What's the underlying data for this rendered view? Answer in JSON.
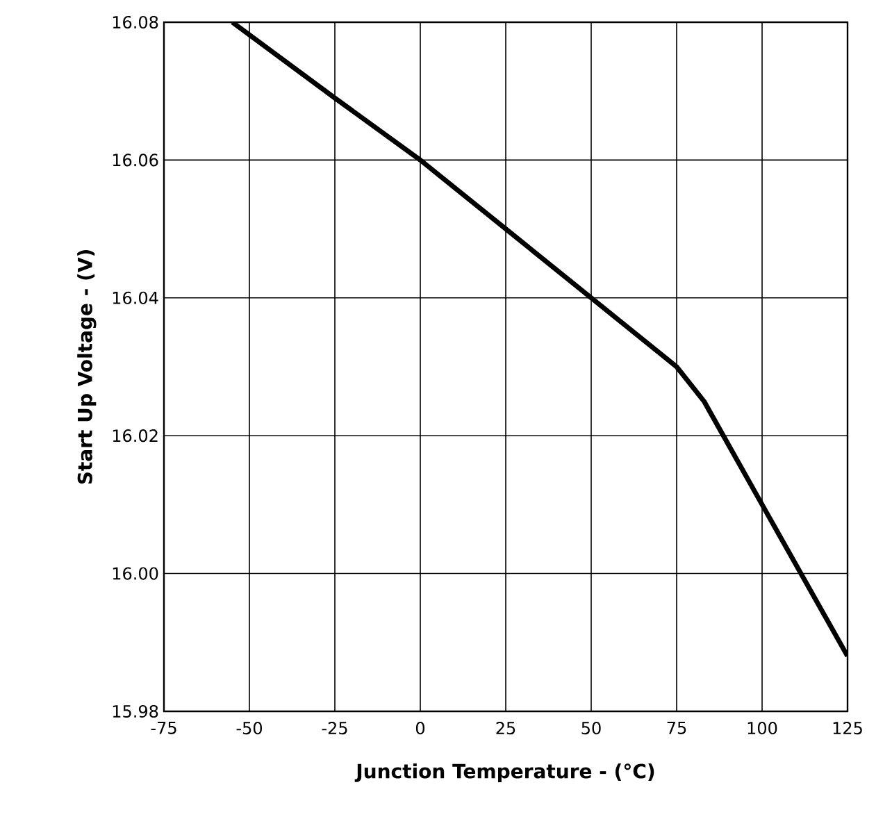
{
  "chart_data": {
    "type": "line",
    "xlabel": "Junction Temperature - (°C)",
    "ylabel": "Start Up Voltage - (V)",
    "x": [
      -55,
      -25,
      0,
      25,
      50,
      75,
      83,
      100,
      125
    ],
    "series": [
      {
        "color": "#000000",
        "values": [
          16.08,
          16.069,
          16.06,
          16.05,
          16.04,
          16.03,
          16.025,
          16.01,
          15.988
        ]
      }
    ],
    "xlim": [
      -75,
      125
    ],
    "ylim": [
      15.98,
      16.08
    ],
    "xticks": [
      -75,
      -50,
      -25,
      0,
      25,
      50,
      75,
      100,
      125
    ],
    "yticks": [
      {
        "value": 15.98,
        "label": "15.98"
      },
      {
        "value": 16.0,
        "label": "16.00"
      },
      {
        "value": 16.02,
        "label": "16.02"
      },
      {
        "value": 16.04,
        "label": "16.04"
      },
      {
        "value": 16.06,
        "label": "16.06"
      },
      {
        "value": 16.08,
        "label": "16.08"
      }
    ],
    "grid": true,
    "marker": "none",
    "line_style": "solid"
  }
}
